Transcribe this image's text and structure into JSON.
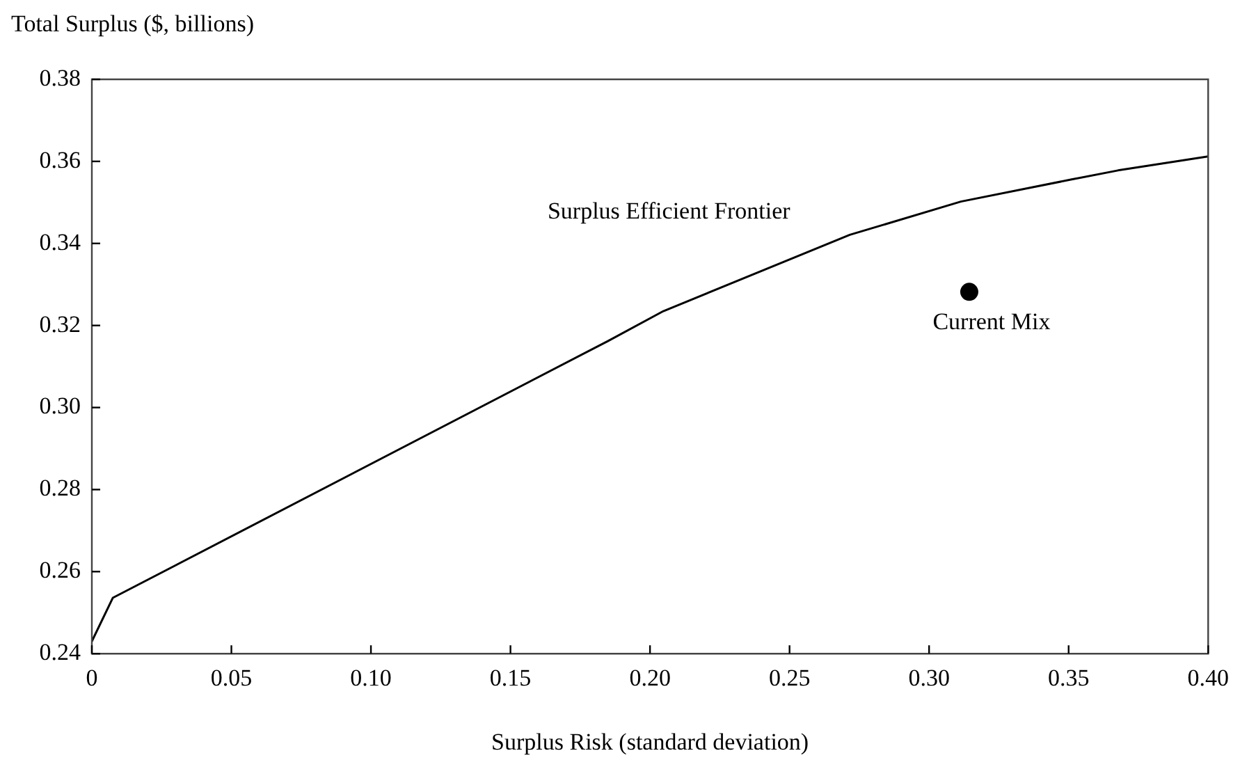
{
  "chart_data": {
    "type": "line",
    "xlabel": "Surplus Risk (standard deviation)",
    "ylabel": "Total Surplus ($, billions)",
    "xlim": [
      0,
      0.4
    ],
    "xticks": [
      0,
      0.05,
      {
        "value": 0.1,
        "label": "0.10"
      },
      0.15,
      {
        "value": 0.2,
        "label": "0.20"
      },
      0.25,
      {
        "value": 0.3,
        "label": "0.30"
      },
      0.35,
      {
        "value": 0.4,
        "label": "0.40"
      }
    ],
    "ylim": [
      0.24,
      0.38
    ],
    "yticks": [
      0.24,
      0.26,
      0.28,
      {
        "value": 0.3,
        "label": "0.30"
      },
      0.32,
      0.34,
      0.36,
      0.38
    ],
    "grid": false,
    "legend": false,
    "series": [
      {
        "name": "Surplus Efficient Frontier",
        "color": "#000000",
        "marker": "none",
        "x": [
          0,
          0.0075,
          0.1849,
          0.2048,
          0.2716,
          0.3114,
          0.3511,
          0.3677,
          0.4
        ],
        "values": [
          0.243,
          0.2536,
          0.3162,
          0.3235,
          0.3421,
          0.3502,
          0.3556,
          0.3578,
          0.3612
        ]
      },
      {
        "name": "Current Mix",
        "type": "scatter",
        "color": "#000000",
        "marker": "circle",
        "x": [
          0.3144
        ],
        "values": [
          0.3282
        ]
      }
    ]
  }
}
